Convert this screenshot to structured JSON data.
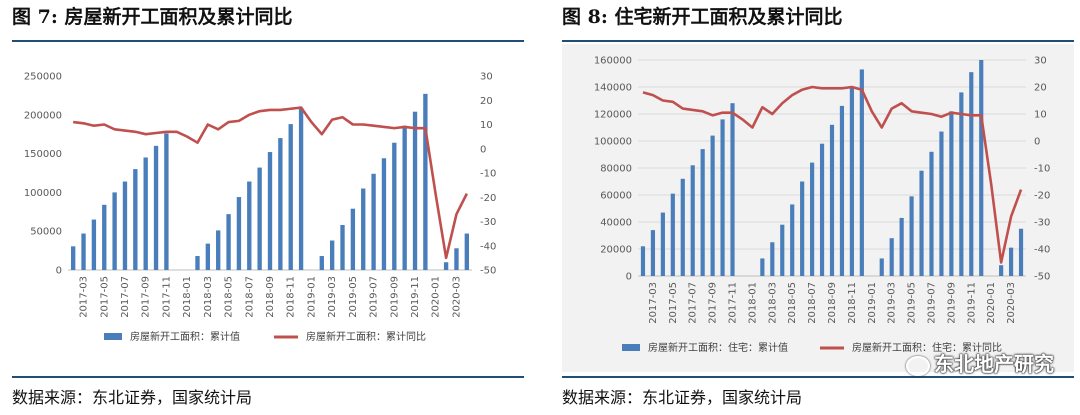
{
  "charts": [
    {
      "figure_title": "图 7:  房屋新开工面积及累计同比",
      "source": "数据来源：东北证券，国家统计局",
      "background": "#ffffff",
      "bar_color": "#4a7ebb",
      "line_color": "#c0504d",
      "left_ticks": [
        "0",
        "50000",
        "100000",
        "150000",
        "200000",
        "250000"
      ],
      "right_ticks": [
        "-50",
        "-40",
        "-30",
        "-20",
        "-10",
        "0",
        "10",
        "20",
        "30"
      ],
      "x_tick_labels": [
        "2017-03",
        "2017-05",
        "2017-07",
        "2017-09",
        "2017-11",
        "2018-01",
        "2018-03",
        "2018-05",
        "2018-07",
        "2018-09",
        "2018-11",
        "2019-01",
        "2019-03",
        "2019-05",
        "2019-07",
        "2019-09",
        "2019-11",
        "2020-01",
        "2020-03"
      ],
      "legend": {
        "bar_label": "房屋新开工面积：累计值",
        "line_label": "房屋新开工面积：累计同比"
      }
    },
    {
      "figure_title": "图 8:  住宅新开工面积及累计同比",
      "source": "数据来源：东北证券，国家统计局",
      "background": "#f2f2f2",
      "bar_color": "#4a7ebb",
      "line_color": "#c0504d",
      "left_ticks": [
        "0",
        "20000",
        "40000",
        "60000",
        "80000",
        "100000",
        "120000",
        "140000",
        "160000"
      ],
      "right_ticks": [
        "-50",
        "-40",
        "-30",
        "-20",
        "-10",
        "0",
        "10",
        "20",
        "30"
      ],
      "x_tick_labels": [
        "2017-03",
        "2017-05",
        "2017-07",
        "2017-09",
        "2017-11",
        "2018-01",
        "2018-03",
        "2018-05",
        "2018-07",
        "2018-09",
        "2018-11",
        "2019-01",
        "2019-03",
        "2019-05",
        "2019-07",
        "2019-09",
        "2019-11",
        "2020-01",
        "2020-03"
      ],
      "legend": {
        "bar_label": "房屋新开工面积：住宅：累计值",
        "line_label": "房屋新开工面积：住宅：累计同比"
      },
      "watermark": "东北地产研究"
    }
  ],
  "chart_data": [
    {
      "type": "bar+line",
      "title": "房屋新开工面积及累计同比",
      "x": [
        "2017-02",
        "2017-03",
        "2017-04",
        "2017-05",
        "2017-06",
        "2017-07",
        "2017-08",
        "2017-09",
        "2017-10",
        "2017-11",
        "2017-12",
        "2018-01",
        "2018-02",
        "2018-03",
        "2018-04",
        "2018-05",
        "2018-06",
        "2018-07",
        "2018-08",
        "2018-09",
        "2018-10",
        "2018-11",
        "2018-12",
        "2019-01",
        "2019-02",
        "2019-03",
        "2019-04",
        "2019-05",
        "2019-06",
        "2019-07",
        "2019-08",
        "2019-09",
        "2019-10",
        "2019-11",
        "2019-12",
        "2020-01",
        "2020-02",
        "2020-03",
        "2020-04"
      ],
      "series": [
        {
          "name": "房屋新开工面积：累计值",
          "axis": "left",
          "type": "bar",
          "values": [
            30500,
            47000,
            65000,
            84000,
            100000,
            114000,
            130000,
            145000,
            160000,
            176000,
            null,
            null,
            18000,
            34000,
            51000,
            72000,
            94000,
            114000,
            132000,
            152000,
            170000,
            188000,
            209000,
            null,
            18000,
            38000,
            58000,
            79000,
            105000,
            124000,
            144000,
            164000,
            186000,
            204000,
            227000,
            null,
            10000,
            28000,
            47000
          ]
        },
        {
          "name": "房屋新开工面积：累计同比",
          "axis": "right",
          "type": "line",
          "values": [
            11,
            10.5,
            9.5,
            10,
            8,
            7.5,
            7,
            6,
            6.5,
            7,
            7,
            5,
            2.5,
            10,
            8,
            11,
            11.5,
            14,
            15.5,
            16,
            16,
            16.5,
            17,
            11,
            6,
            12,
            13,
            10,
            10,
            9.5,
            9,
            8.5,
            9,
            8.5,
            8.5,
            -19,
            -45,
            -27,
            -18.5
          ]
        }
      ],
      "left_ylim": [
        0,
        250000
      ],
      "right_ylim": [
        -50,
        30
      ],
      "legend_position": "bottom"
    },
    {
      "type": "bar+line",
      "title": "住宅新开工面积及累计同比",
      "x": [
        "2017-02",
        "2017-03",
        "2017-04",
        "2017-05",
        "2017-06",
        "2017-07",
        "2017-08",
        "2017-09",
        "2017-10",
        "2017-11",
        "2017-12",
        "2018-01",
        "2018-02",
        "2018-03",
        "2018-04",
        "2018-05",
        "2018-06",
        "2018-07",
        "2018-08",
        "2018-09",
        "2018-10",
        "2018-11",
        "2018-12",
        "2019-01",
        "2019-02",
        "2019-03",
        "2019-04",
        "2019-05",
        "2019-06",
        "2019-07",
        "2019-08",
        "2019-09",
        "2019-10",
        "2019-11",
        "2019-12",
        "2020-01",
        "2020-02",
        "2020-03",
        "2020-04"
      ],
      "series": [
        {
          "name": "房屋新开工面积：住宅：累计值",
          "axis": "left",
          "type": "bar",
          "values": [
            22000,
            34000,
            47000,
            61000,
            72000,
            82000,
            94000,
            104000,
            116000,
            128000,
            null,
            null,
            13000,
            25000,
            38000,
            53000,
            70000,
            84000,
            98000,
            112000,
            126000,
            140000,
            153000,
            null,
            13000,
            28000,
            43000,
            59000,
            78000,
            92000,
            107000,
            122000,
            136000,
            151000,
            160000,
            null,
            8000,
            21000,
            35000
          ]
        },
        {
          "name": "房屋新开工面积：住宅：累计同比",
          "axis": "right",
          "type": "line",
          "values": [
            18,
            17,
            15,
            14.5,
            12,
            11.5,
            11,
            9.5,
            10.5,
            10.5,
            8,
            5,
            12.5,
            10,
            14,
            17,
            19,
            20,
            19.5,
            19.5,
            19.5,
            20,
            19,
            11,
            5,
            12,
            14,
            11,
            10.5,
            10,
            9,
            10.5,
            10,
            9.5,
            9.5,
            -16,
            -45,
            -28,
            -18
          ]
        }
      ],
      "left_ylim": [
        0,
        160000
      ],
      "right_ylim": [
        -50,
        30
      ],
      "legend_position": "bottom"
    }
  ]
}
